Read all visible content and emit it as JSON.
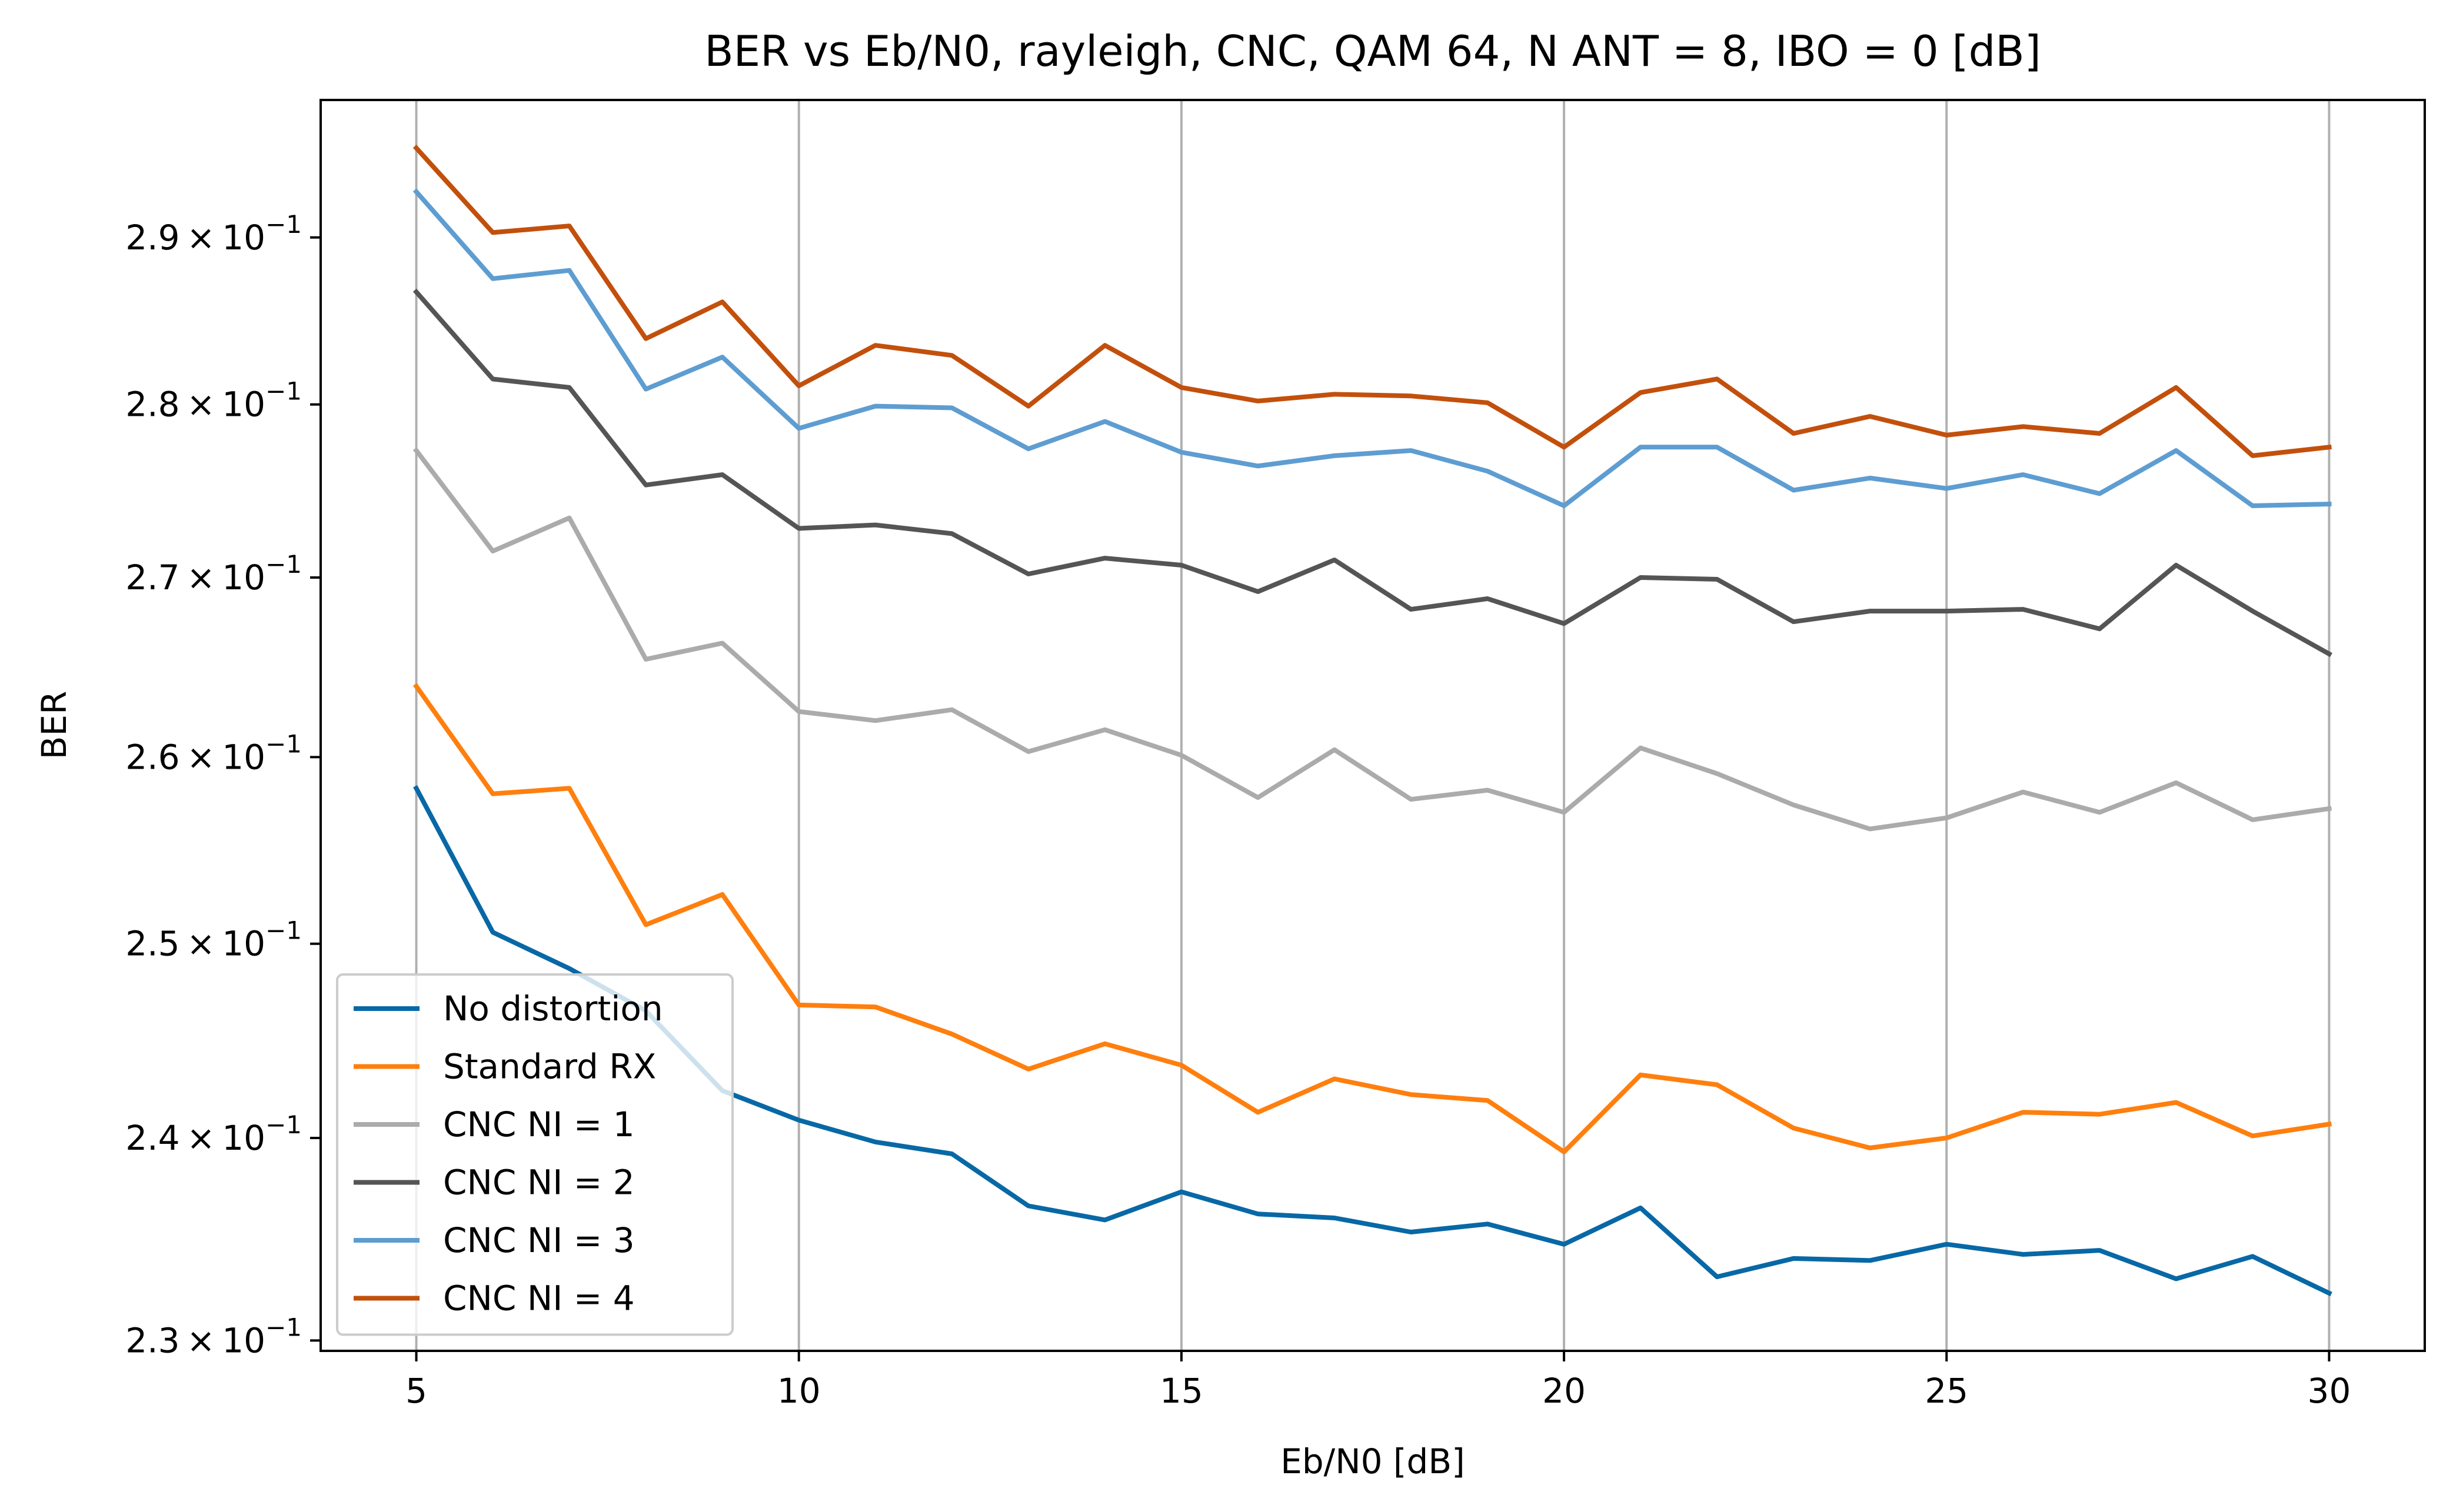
{
  "chart_data": {
    "type": "line",
    "title": "BER vs Eb/N0, rayleigh, CNC, QAM 64, N ANT = 8, IBO = 0 [dB]",
    "xlabel": "Eb/N0 [dB]",
    "ylabel": "BER",
    "xlim": [
      3.75,
      31.25
    ],
    "ylim": [
      0.2295,
      0.2985
    ],
    "yscale": "log",
    "grid": "x-major vertical lines",
    "legend_position": "lower-left",
    "x": [
      5,
      6,
      7,
      8,
      9,
      10,
      11,
      12,
      13,
      14,
      15,
      16,
      17,
      18,
      19,
      20,
      21,
      22,
      23,
      24,
      25,
      26,
      27,
      28,
      29,
      30
    ],
    "x_ticks": [
      5,
      10,
      15,
      20,
      25,
      30
    ],
    "x_tick_labels": [
      "5",
      "10",
      "15",
      "20",
      "25",
      "30"
    ],
    "y_ticks": [
      0.23,
      0.24,
      0.25,
      0.26,
      0.27,
      0.28,
      0.29
    ],
    "y_tick_labels": [
      {
        "mantissa": "2.3",
        "exponent": "−1"
      },
      {
        "mantissa": "2.4",
        "exponent": "−1"
      },
      {
        "mantissa": "2.5",
        "exponent": "−1"
      },
      {
        "mantissa": "2.6",
        "exponent": "−1"
      },
      {
        "mantissa": "2.7",
        "exponent": "−1"
      },
      {
        "mantissa": "2.8",
        "exponent": "−1"
      },
      {
        "mantissa": "2.9",
        "exponent": "−1"
      }
    ],
    "series": [
      {
        "name": "No distortion",
        "color": "#0868a6",
        "values": [
          0.2583,
          0.2506,
          0.2487,
          0.2465,
          0.2424,
          0.2409,
          0.2398,
          0.2392,
          0.2366,
          0.2359,
          0.2373,
          0.2362,
          0.236,
          0.2353,
          0.2357,
          0.2347,
          0.2365,
          0.2331,
          0.234,
          0.2339,
          0.2347,
          0.2342,
          0.2344,
          0.233,
          0.2341,
          0.2323
        ]
      },
      {
        "name": "Standard RX",
        "color": "#ff7f0e",
        "values": [
          0.2639,
          0.258,
          0.2583,
          0.251,
          0.2526,
          0.2468,
          0.2467,
          0.2453,
          0.2435,
          0.2448,
          0.2437,
          0.2413,
          0.243,
          0.2422,
          0.2419,
          0.2393,
          0.2432,
          0.2427,
          0.2405,
          0.2395,
          0.24,
          0.2413,
          0.2412,
          0.2418,
          0.2401,
          0.2407
        ]
      },
      {
        "name": "CNC NI = 1",
        "color": "#ababab",
        "values": [
          0.2773,
          0.2715,
          0.2734,
          0.2654,
          0.2663,
          0.2625,
          0.262,
          0.2626,
          0.2603,
          0.2615,
          0.2601,
          0.2578,
          0.2604,
          0.2577,
          0.2582,
          0.257,
          0.2605,
          0.2591,
          0.2574,
          0.2561,
          0.2567,
          0.2581,
          0.257,
          0.2586,
          0.2566,
          0.2572
        ]
      },
      {
        "name": "CNC NI = 2",
        "color": "#555555",
        "values": [
          0.2867,
          0.2815,
          0.281,
          0.2753,
          0.2759,
          0.2728,
          0.273,
          0.2725,
          0.2702,
          0.2711,
          0.2707,
          0.2692,
          0.271,
          0.2682,
          0.2688,
          0.2674,
          0.27,
          0.2699,
          0.2675,
          0.2681,
          0.2681,
          0.2682,
          0.2671,
          0.2707,
          0.2681,
          0.2657
        ]
      },
      {
        "name": "CNC NI = 3",
        "color": "#5e9dd1",
        "values": [
          0.2928,
          0.2875,
          0.288,
          0.2809,
          0.2828,
          0.2786,
          0.2799,
          0.2798,
          0.2774,
          0.279,
          0.2772,
          0.2764,
          0.277,
          0.2773,
          0.2761,
          0.2741,
          0.2775,
          0.2775,
          0.275,
          0.2757,
          0.2751,
          0.2759,
          0.2748,
          0.2773,
          0.2741,
          0.2742
        ]
      },
      {
        "name": "CNC NI = 4",
        "color": "#c2500c",
        "values": [
          0.2955,
          0.2903,
          0.2907,
          0.2839,
          0.2861,
          0.2811,
          0.2835,
          0.2829,
          0.2799,
          0.2835,
          0.281,
          0.2802,
          0.2806,
          0.2805,
          0.2801,
          0.2775,
          0.2807,
          0.2815,
          0.2783,
          0.2793,
          0.2782,
          0.2787,
          0.2783,
          0.281,
          0.277,
          0.2775
        ]
      }
    ]
  }
}
